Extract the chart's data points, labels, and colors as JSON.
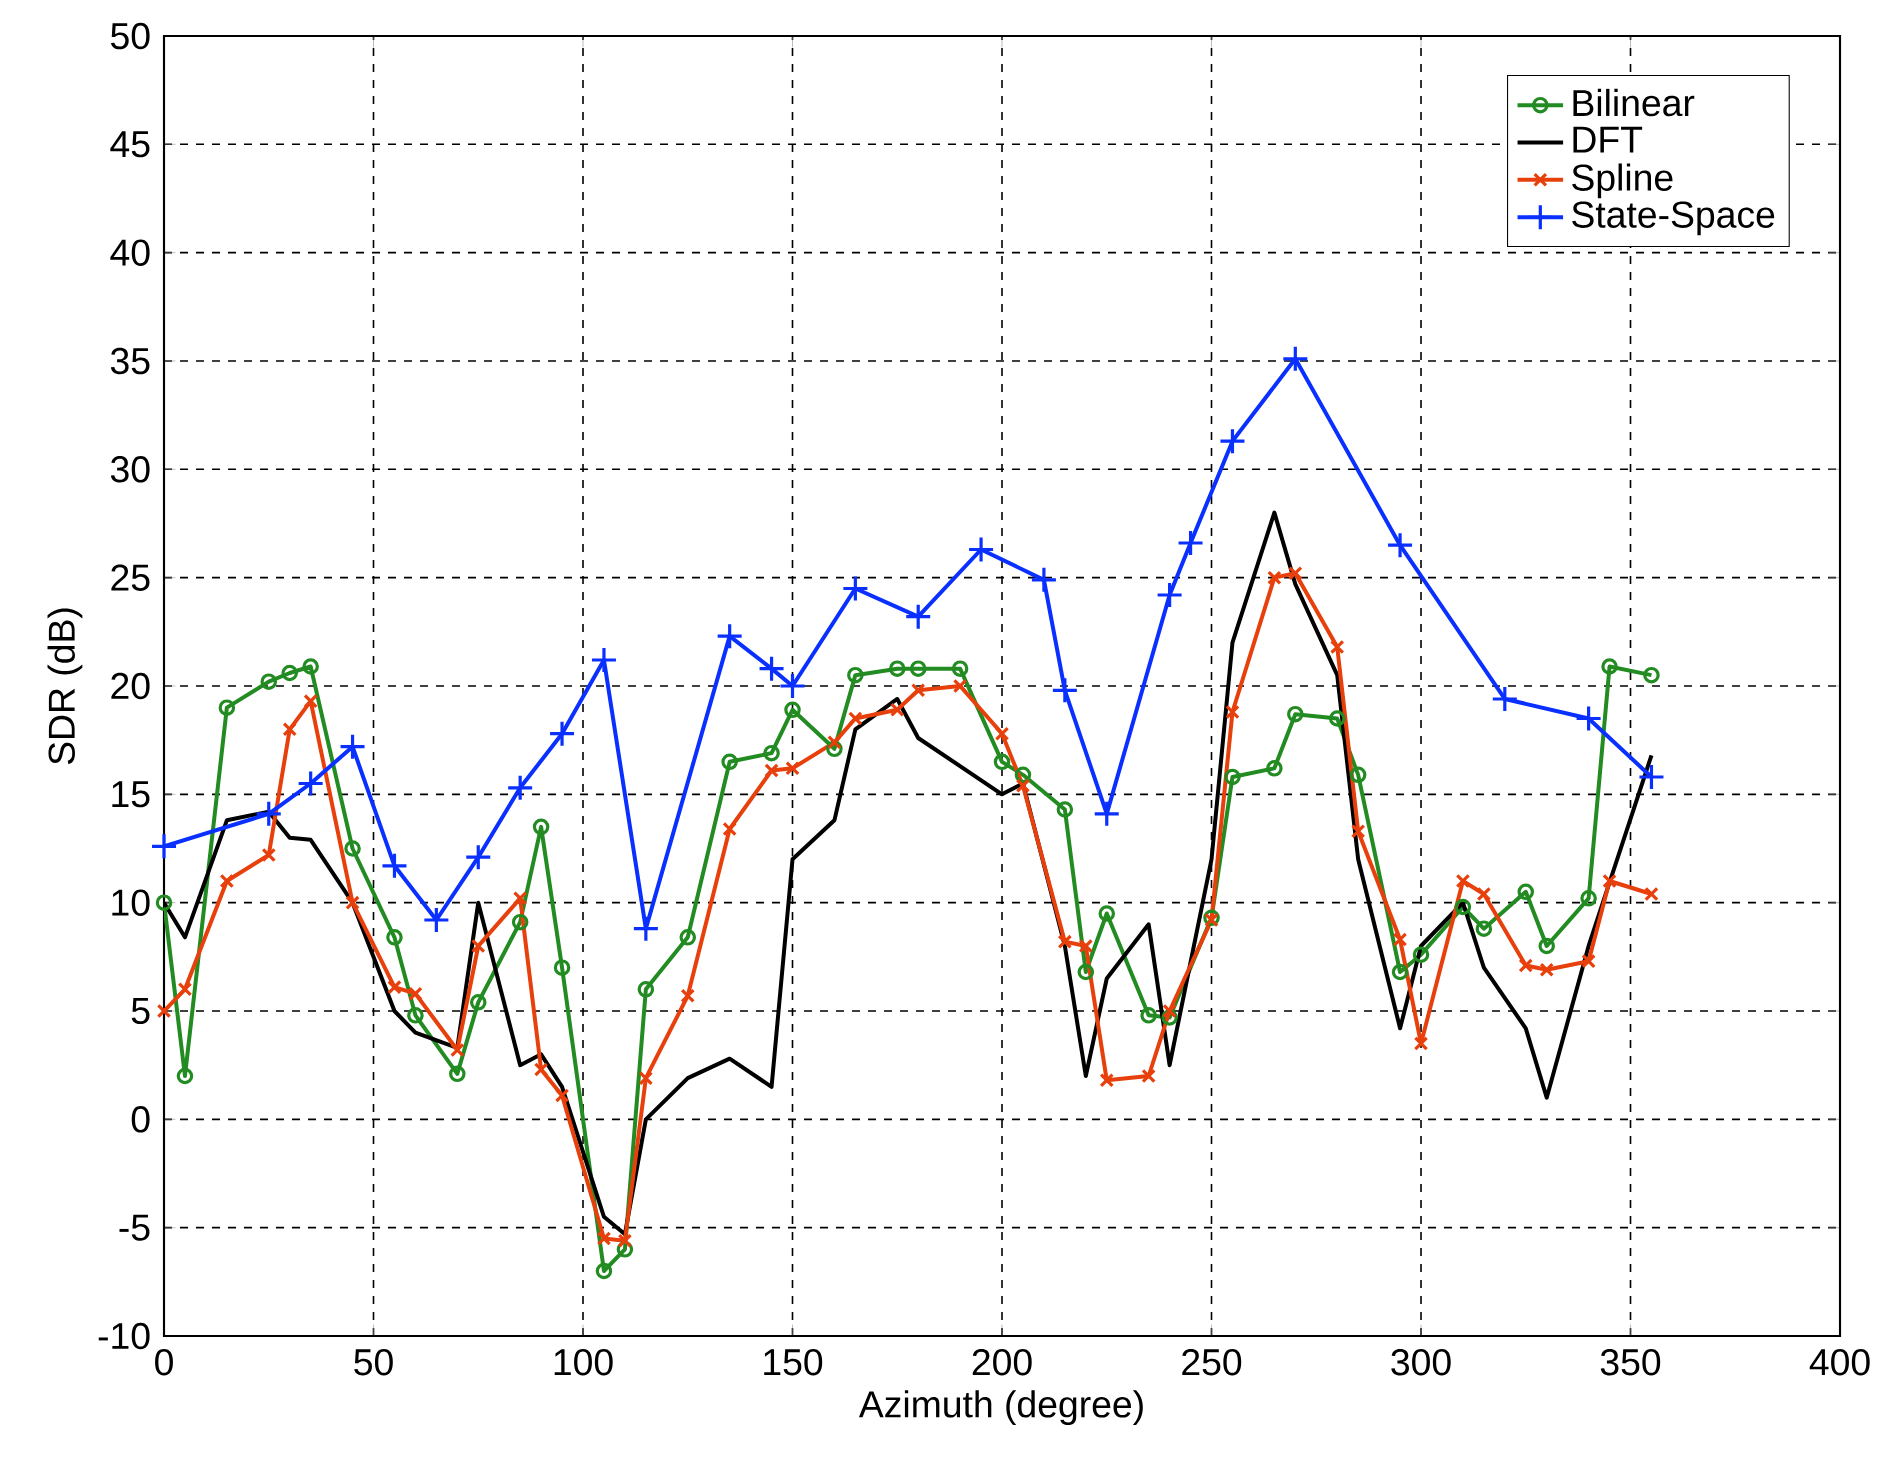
{
  "chart_data": {
    "type": "line",
    "xlabel": "Azimuth (degree)",
    "ylabel": "SDR (dB)",
    "xlim": [
      0,
      400
    ],
    "ylim": [
      -10,
      50
    ],
    "xticks": [
      0,
      50,
      100,
      150,
      200,
      250,
      300,
      350,
      400
    ],
    "yticks": [
      -10,
      -5,
      0,
      5,
      10,
      15,
      20,
      25,
      30,
      35,
      40,
      45,
      50
    ],
    "grid": true,
    "legend": "top right",
    "line_style": "solid",
    "series": [
      {
        "name": "Bilinear",
        "color": "#228b22",
        "marker": "circle",
        "x": [
          0,
          5,
          15,
          25,
          30,
          35,
          45,
          55,
          60,
          70,
          75,
          85,
          90,
          95,
          105,
          110,
          115,
          125,
          135,
          145,
          150,
          160,
          165,
          175,
          180,
          190,
          200,
          205,
          215,
          220,
          225,
          235,
          240,
          250,
          255,
          265,
          270,
          280,
          285,
          295,
          300,
          310,
          315,
          325,
          330,
          340,
          345,
          355
        ],
        "values": [
          10,
          2,
          19,
          20.2,
          20.6,
          20.9,
          12.5,
          8.4,
          4.8,
          2.1,
          5.4,
          9.1,
          13.5,
          7,
          -7,
          -6,
          6,
          8.4,
          16.5,
          16.9,
          18.9,
          17.1,
          20.5,
          20.8,
          20.8,
          20.8,
          16.5,
          15.9,
          14.3,
          6.8,
          9.5,
          4.8,
          4.7,
          9.3,
          15.8,
          16.2,
          18.7,
          18.5,
          15.9,
          6.8,
          7.6,
          9.8,
          8.8,
          10.5,
          8,
          10.2,
          20.9,
          20.5
        ]
      },
      {
        "name": "DFT",
        "color": "#000000",
        "marker": "none",
        "x": [
          0,
          5,
          15,
          25,
          30,
          35,
          45,
          55,
          60,
          70,
          75,
          85,
          90,
          95,
          105,
          110,
          115,
          125,
          135,
          145,
          150,
          160,
          165,
          175,
          180,
          200,
          205,
          215,
          220,
          225,
          235,
          240,
          250,
          255,
          265,
          270,
          280,
          285,
          295,
          300,
          310,
          315,
          325,
          330,
          340,
          355
        ],
        "values": [
          10,
          8.4,
          13.8,
          14.2,
          13,
          12.9,
          10,
          5,
          4,
          3.3,
          10,
          2.5,
          3,
          1.5,
          -4.5,
          -5.3,
          0,
          1.9,
          2.8,
          1.5,
          12,
          13.8,
          18,
          19.4,
          17.6,
          15,
          15.5,
          8,
          2,
          6.5,
          9,
          2.5,
          12,
          22,
          28,
          24.7,
          20.5,
          12,
          4.2,
          8,
          10,
          7,
          4.2,
          1,
          8,
          16.8
        ]
      },
      {
        "name": "Spline",
        "color": "#e8400c",
        "marker": "cross",
        "x": [
          0,
          5,
          15,
          25,
          30,
          35,
          45,
          55,
          60,
          70,
          75,
          85,
          90,
          95,
          105,
          110,
          115,
          125,
          135,
          145,
          150,
          160,
          165,
          175,
          180,
          190,
          200,
          205,
          215,
          220,
          225,
          235,
          240,
          250,
          255,
          265,
          270,
          280,
          285,
          295,
          300,
          310,
          315,
          325,
          330,
          340,
          345,
          355
        ],
        "values": [
          5,
          6,
          11,
          12.2,
          18,
          19.3,
          10,
          6.1,
          5.8,
          3.2,
          8,
          10.2,
          2.3,
          1.1,
          -5.5,
          -5.6,
          1.9,
          5.7,
          13.4,
          16.1,
          16.2,
          17.4,
          18.5,
          18.9,
          19.8,
          20,
          17.8,
          15.4,
          8.2,
          8,
          1.8,
          2,
          5,
          9.2,
          18.8,
          25,
          25.2,
          21.8,
          13.3,
          8.3,
          3.5,
          11,
          10.4,
          7.1,
          6.9,
          7.3,
          11,
          10.4
        ]
      },
      {
        "name": "State-Space",
        "color": "#0a30ff",
        "marker": "plus",
        "x": [
          0,
          25,
          35,
          45,
          55,
          65,
          75,
          85,
          95,
          105,
          115,
          135,
          145,
          150,
          165,
          180,
          195,
          210,
          215,
          225,
          240,
          245,
          255,
          270,
          295,
          320,
          340,
          355
        ],
        "values": [
          12.6,
          14.1,
          15.5,
          17.2,
          11.7,
          9.2,
          12.1,
          15.3,
          17.8,
          21.2,
          8.8,
          22.3,
          20.8,
          20,
          24.5,
          23.2,
          26.3,
          24.9,
          19.8,
          14.1,
          24.2,
          26.6,
          31.3,
          35.1,
          26.5,
          19.4,
          18.5,
          15.8
        ]
      }
    ]
  }
}
